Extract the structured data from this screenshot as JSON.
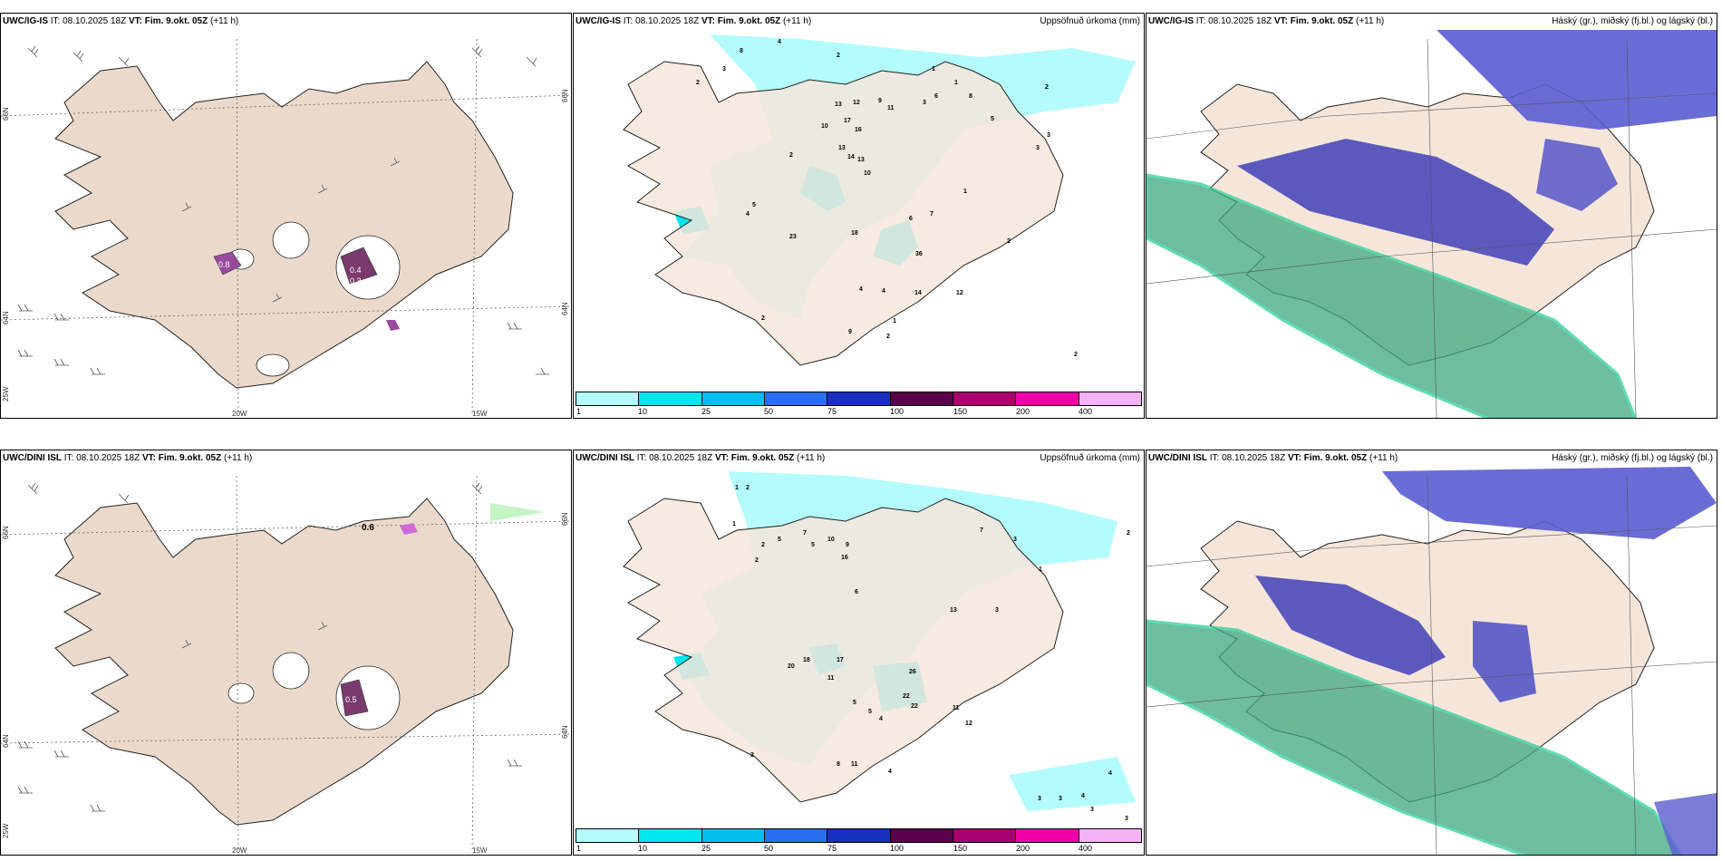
{
  "panels": [
    {
      "model": "UWC/IG-IS",
      "it": "IT: 08.10.2025 18Z",
      "vt_label": "VT:",
      "vt": "Fim. 9.okt. 05Z",
      "lead": "(+11 h)",
      "right": ""
    },
    {
      "model": "UWC/IG-IS",
      "it": "IT: 08.10.2025 18Z",
      "vt_label": "VT:",
      "vt": "Fim. 9.okt. 05Z",
      "lead": "(+11 h)",
      "right": "Uppsöfnuð úrkoma (mm)"
    },
    {
      "model": "UWC/IG-IS",
      "it": "IT: 08.10.2025 18Z",
      "vt_label": "VT:",
      "vt": "Fim. 9.okt. 05Z",
      "lead": "(+11 h)",
      "right": "Háský (gr.), miðský (fj.bl.) og lágský (bl.)"
    },
    {
      "model": "UWC/DINI ISL",
      "it": "IT: 08.10.2025 18Z",
      "vt_label": "VT:",
      "vt": "Fim. 9.okt. 05Z",
      "lead": "(+11 h)",
      "right": ""
    },
    {
      "model": "UWC/DINI ISL",
      "it": "IT: 08.10.2025 18Z",
      "vt_label": "VT:",
      "vt": "Fim. 9.okt. 05Z",
      "lead": "(+11 h)",
      "right": "Uppsöfnuð úrkoma (mm)"
    },
    {
      "model": "UWC/DINI ISL",
      "it": "IT: 08.10.2025 18Z",
      "vt_label": "VT:",
      "vt": "Fim. 9.okt. 05Z",
      "lead": "(+11 h)",
      "right": "Háský (gr.), miðský (fj.bl.) og lágský (bl.)"
    }
  ],
  "wind_panel": {
    "lon_labels": [
      "20W",
      "15W"
    ],
    "lat_labels": [
      "66N",
      "64N"
    ],
    "left_lat_label": "25W",
    "top_icing_values": [
      "0.8",
      "0.4",
      "0.3"
    ],
    "bottom_icing_values": [
      "0.6",
      "0.5"
    ]
  },
  "colorbar": {
    "labels": [
      "1",
      "10",
      "25",
      "50",
      "75",
      "100",
      "150",
      "200",
      "400"
    ],
    "colors": [
      "#b3fbfd",
      "#00e5ee",
      "#00bfef",
      "#2a6ef0",
      "#1b2fc0",
      "#5a004a",
      "#a8006e",
      "#f000a8",
      "#f5b3f5"
    ]
  },
  "colors": {
    "land": "#f6e6da",
    "wind_land": "#ebdacb",
    "precip_light": "#b3fbfd",
    "precip_med": "#00e5ee",
    "cloud_high": "#5a5cd0",
    "cloud_mid": "#3fa882",
    "coast": "#222222"
  },
  "precip_top_values": [
    "8",
    "4",
    "3",
    "2",
    "2",
    "1",
    "1",
    "2",
    "3",
    "13",
    "12",
    "17",
    "16",
    "13",
    "14",
    "13",
    "10",
    "9",
    "11",
    "6",
    "8",
    "5",
    "2",
    "3",
    "23",
    "18",
    "10",
    "36",
    "14",
    "12",
    "4",
    "2",
    "1",
    "2",
    "9",
    "2",
    "1",
    "6",
    "7",
    "2",
    "3",
    "5",
    "4",
    "4",
    "1"
  ],
  "precip_bottom_values": [
    "1",
    "2",
    "1",
    "2",
    "5",
    "7",
    "10",
    "9",
    "16",
    "5",
    "6",
    "2",
    "3",
    "7",
    "13",
    "3",
    "20",
    "18",
    "17",
    "11",
    "26",
    "22",
    "22",
    "11",
    "12",
    "5",
    "5",
    "4",
    "8",
    "11",
    "4",
    "3",
    "3",
    "3",
    "4",
    "4",
    "3",
    "3",
    "1",
    "2"
  ]
}
